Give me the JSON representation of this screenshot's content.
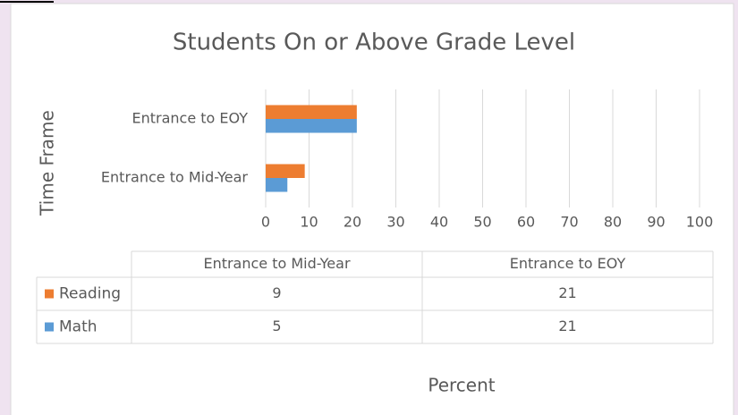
{
  "chart_data": {
    "type": "barh",
    "title": "Students On or Above Grade Level",
    "y_label": "Time Frame",
    "x_label": "Percent",
    "categories": [
      "Entrance to Mid-Year",
      "Entrance to EOY"
    ],
    "series": [
      {
        "name": "Reading",
        "color": "#ed7d31",
        "values": [
          9,
          21
        ]
      },
      {
        "name": "Math",
        "color": "#5b9bd5",
        "values": [
          5,
          21
        ]
      }
    ],
    "xlim": [
      0,
      100
    ],
    "xticks": [
      0,
      10,
      20,
      30,
      40,
      50,
      60,
      70,
      80,
      90,
      100
    ],
    "grid": true
  }
}
